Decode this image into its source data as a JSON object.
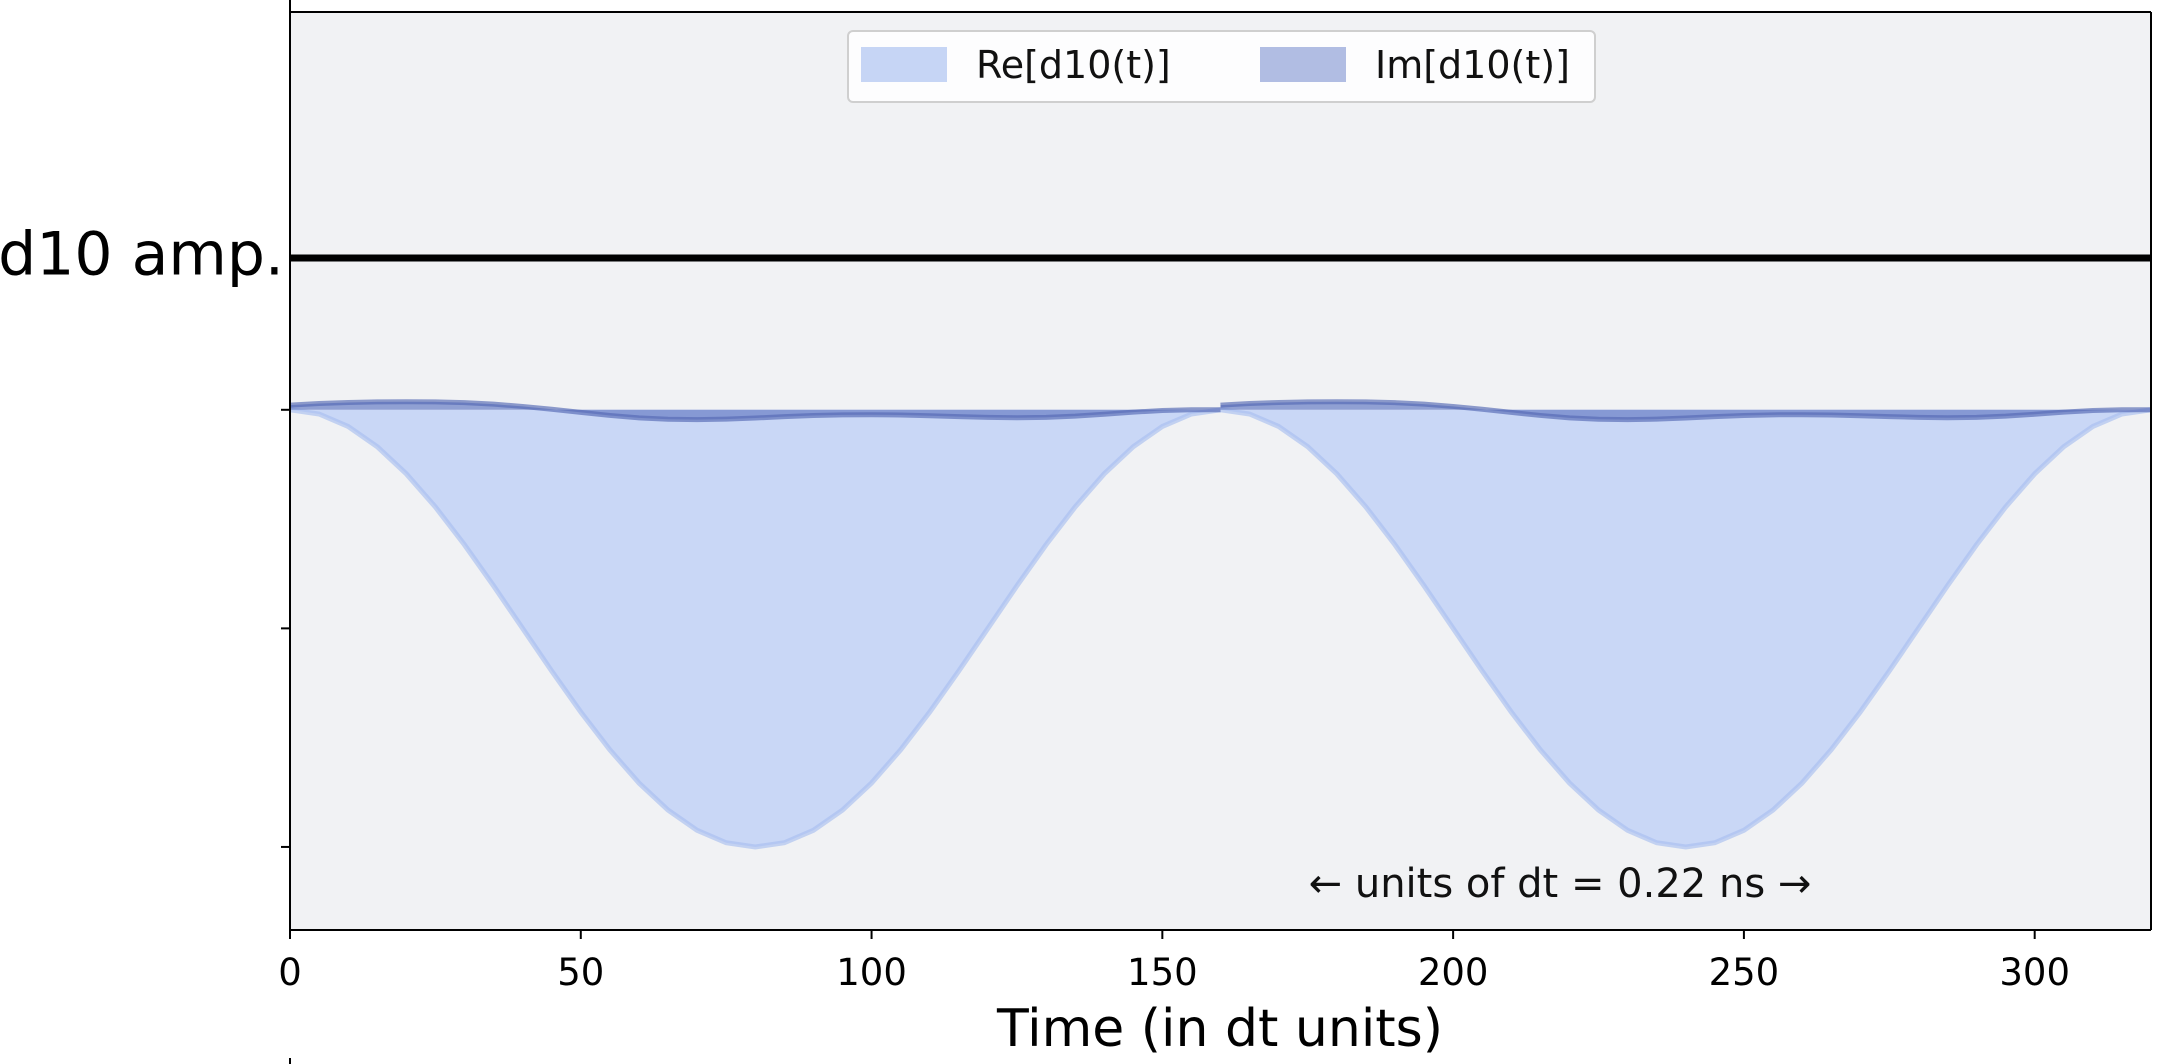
{
  "chart_data": {
    "type": "area",
    "channel_label": "d10 amp.",
    "xlabel": "Time (in dt units)",
    "note": "← units of dt = 0.22 ns →",
    "xlim": [
      0,
      320
    ],
    "ylim": [
      -1.19,
      0.91
    ],
    "x_ticks": [
      0,
      50,
      100,
      150,
      200,
      250,
      300
    ],
    "y_ticks": [
      -1.0,
      -0.5,
      0.0
    ],
    "pulse": {
      "count": 2,
      "duration": 160,
      "starts": [
        0,
        160
      ],
      "re_min": -1.0,
      "im_amplitude": 0.04
    },
    "series": [
      {
        "name": "Re[d10(t)]",
        "color": "#c6d5f5",
        "edge": "#a9bff0",
        "values": [
          0.0,
          -0.0096,
          -0.0381,
          -0.0843,
          -0.1464,
          -0.2222,
          -0.3087,
          -0.4025,
          -0.5,
          -0.5975,
          -0.6913,
          -0.7778,
          -0.8536,
          -0.9157,
          -0.9619,
          -0.9904,
          -1.0,
          -0.9904,
          -0.9619,
          -0.9157,
          -0.8536,
          -0.7778,
          -0.6913,
          -0.5975,
          -0.5,
          -0.4025,
          -0.3087,
          -0.2222,
          -0.1464,
          -0.0843,
          -0.0381,
          -0.0096,
          0.0
        ]
      },
      {
        "name": "Im[d10(t)]",
        "color": "#6f84c8",
        "edge": "#5468b4",
        "values": [
          0.0108,
          0.0144,
          0.0168,
          0.018,
          0.0185,
          0.018,
          0.0163,
          0.0129,
          0.0077,
          0.0012,
          -0.006,
          -0.0129,
          -0.0184,
          -0.0217,
          -0.0226,
          -0.0214,
          -0.0188,
          -0.0157,
          -0.0131,
          -0.0115,
          -0.0112,
          -0.0119,
          -0.0135,
          -0.0155,
          -0.0173,
          -0.0181,
          -0.0173,
          -0.0146,
          -0.0103,
          -0.0054,
          -0.0016,
          0.0,
          0.0
        ]
      }
    ],
    "legend": {
      "position": "top-center"
    },
    "background": "#f1f2f4",
    "baseline_color": "#000000"
  }
}
